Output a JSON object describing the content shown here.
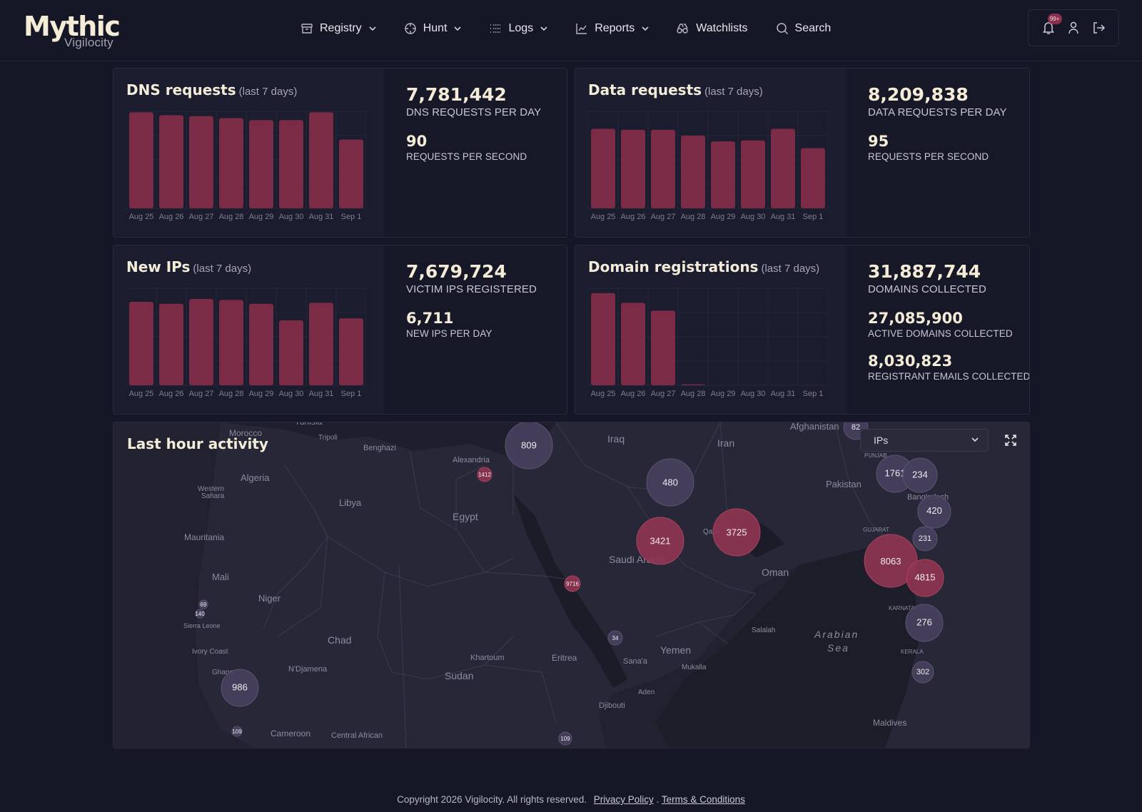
{
  "brand": {
    "name": "Mythic",
    "subtitle": "Vigilocity"
  },
  "nav": {
    "registry": "Registry",
    "hunt": "Hunt",
    "logs": "Logs",
    "reports": "Reports",
    "watchlists": "Watchlists",
    "search": "Search"
  },
  "header": {
    "notifications_badge": "99+"
  },
  "colors": {
    "bar": "#7b2b46",
    "bubble_red": "#8e3452",
    "bubble_purple": "#46405e",
    "background": "#161726"
  },
  "panels": {
    "dns": {
      "title": "DNS requests",
      "subtitle": "(last 7 days)",
      "stat1_value": "7,781,442",
      "stat1_label": "DNS REQUESTS PER DAY",
      "stat2_value": "90",
      "stat2_label": "REQUESTS PER SECOND"
    },
    "data": {
      "title": "Data requests",
      "subtitle": "(last 7 days)",
      "stat1_value": "8,209,838",
      "stat1_label": "DATA REQUESTS PER DAY",
      "stat2_value": "95",
      "stat2_label": "REQUESTS PER SECOND"
    },
    "ips": {
      "title": "New IPs",
      "subtitle": "(last 7 days)",
      "stat1_value": "7,679,724",
      "stat1_label": "VICTIM IPS REGISTERED",
      "stat2_value": "6,711",
      "stat2_label": "NEW IPS PER DAY"
    },
    "domains": {
      "title": "Domain registrations",
      "subtitle": "(last 7 days)",
      "stat1_value": "31,887,744",
      "stat1_label": "DOMAINS COLLECTED",
      "stat2_value": "27,085,900",
      "stat2_label": "ACTIVE DOMAINS COLLECTED",
      "stat3_value": "8,030,823",
      "stat3_label": "REGISTRANT EMAILS COLLECTED"
    }
  },
  "chart_data": [
    {
      "type": "bar",
      "categories": [
        "Aug 25",
        "Aug 26",
        "Aug 27",
        "Aug 28",
        "Aug 29",
        "Aug 30",
        "Aug 31",
        "Sep 1"
      ],
      "values": [
        99,
        96,
        95,
        93,
        91,
        91,
        99,
        71
      ],
      "ylim": [
        0,
        100
      ]
    },
    {
      "type": "bar",
      "categories": [
        "Aug 25",
        "Aug 26",
        "Aug 27",
        "Aug 28",
        "Aug 29",
        "Aug 30",
        "Aug 31",
        "Sep 1"
      ],
      "values": [
        82,
        81,
        81,
        75,
        69,
        70,
        82,
        62
      ],
      "ylim": [
        0,
        100
      ]
    },
    {
      "type": "bar",
      "categories": [
        "Aug 25",
        "Aug 26",
        "Aug 27",
        "Aug 28",
        "Aug 29",
        "Aug 30",
        "Aug 31",
        "Sep 1"
      ],
      "values": [
        86,
        84,
        89,
        88,
        84,
        67,
        85,
        69
      ],
      "ylim": [
        0,
        100
      ]
    },
    {
      "type": "bar",
      "categories": [
        "Aug 25",
        "Aug 26",
        "Aug 27",
        "Aug 28",
        "Aug 29",
        "Aug 30",
        "Aug 31",
        "Sep 1"
      ],
      "values": [
        95,
        85,
        77,
        1,
        0,
        0,
        0,
        0
      ],
      "ylim": [
        0,
        100
      ]
    }
  ],
  "map": {
    "title": "Last hour activity",
    "layer_select": "IPs",
    "places": [
      "Tunisia",
      "Morocco",
      "Tripoli",
      "Benghazi",
      "Alexandria",
      "Iraq",
      "Iran",
      "Afghanistan",
      "Algeria",
      "Western Sahara",
      "Libya",
      "Egypt",
      "Pakistan",
      "PUNJAB",
      "GUJARAT",
      "Mauritania",
      "Qatar",
      "Saudi Arabia",
      "Mali",
      "Oman",
      "Niger",
      "Chad",
      "Salalah",
      "Arabian Sea",
      "KARNATAKA",
      "KERALA",
      "Sierra Leone",
      "Ivory Coast",
      "N'Djamena",
      "Khartoum",
      "Eritrea",
      "Sana'a",
      "Yemen",
      "Mukalla",
      "Ghana",
      "Sudan",
      "Aden",
      "Djibouti",
      "Maldives",
      "Cameroon",
      "Central African",
      "Bangladesh"
    ],
    "clusters": [
      {
        "count": "809",
        "kind": "purple"
      },
      {
        "count": "1412",
        "kind": "red"
      },
      {
        "count": "480",
        "kind": "purple"
      },
      {
        "count": "3421",
        "kind": "red"
      },
      {
        "count": "3725",
        "kind": "red"
      },
      {
        "count": "9716",
        "kind": "red"
      },
      {
        "count": "34",
        "kind": "purple"
      },
      {
        "count": "986",
        "kind": "purple"
      },
      {
        "count": "69",
        "kind": "purple"
      },
      {
        "count": "140",
        "kind": "purple"
      },
      {
        "count": "109",
        "kind": "purple"
      },
      {
        "count": "109",
        "kind": "purple"
      },
      {
        "count": "82",
        "kind": "purple"
      },
      {
        "count": "1761",
        "kind": "purple"
      },
      {
        "count": "234",
        "kind": "purple"
      },
      {
        "count": "420",
        "kind": "purple"
      },
      {
        "count": "231",
        "kind": "purple"
      },
      {
        "count": "8063",
        "kind": "red"
      },
      {
        "count": "4815",
        "kind": "red"
      },
      {
        "count": "276",
        "kind": "purple"
      },
      {
        "count": "302",
        "kind": "purple"
      }
    ]
  },
  "footer": {
    "copyright": "Copyright 2026 Vigilocity. All rights reserved.",
    "privacy": "Privacy Policy",
    "separator": ".",
    "terms": "Terms & Conditions"
  }
}
